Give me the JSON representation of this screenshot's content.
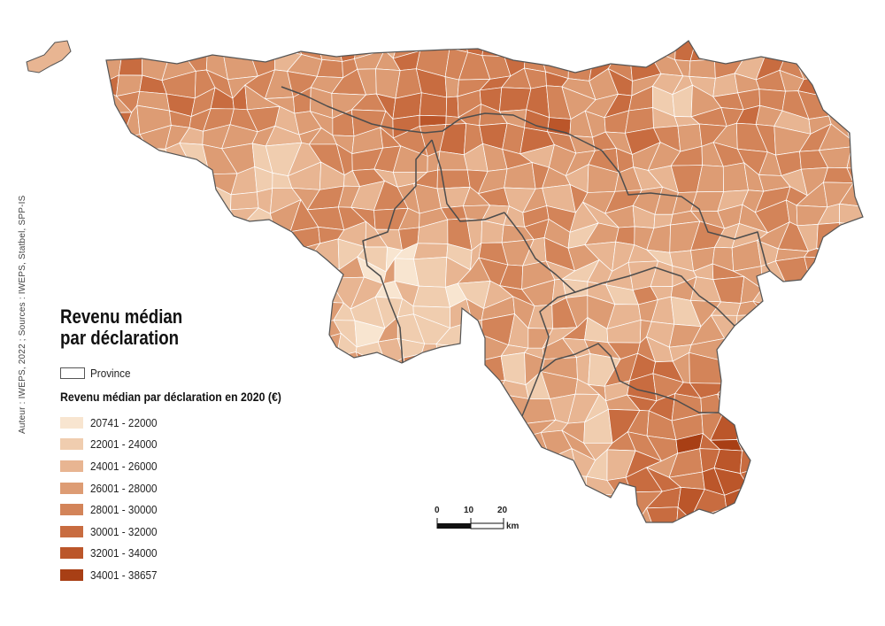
{
  "credit": "Auteur : IWEPS, 2022 ; Sources : IWEPS, Statbel, SPP-IS",
  "title": {
    "line1": "Revenu médian",
    "line2": "par déclaration"
  },
  "legend": {
    "province_label": "Province",
    "title": "Revenu médian par déclaration en 2020 (€)",
    "classes": [
      {
        "label": "20741 - 22000",
        "color": "#f8e5d0"
      },
      {
        "label": "22001 - 24000",
        "color": "#f0cdaf"
      },
      {
        "label": "24001 - 26000",
        "color": "#e8b592"
      },
      {
        "label": "26001 - 28000",
        "color": "#dd9c74"
      },
      {
        "label": "28001 - 30000",
        "color": "#d38459"
      },
      {
        "label": "30001 - 32000",
        "color": "#c86c40"
      },
      {
        "label": "32001 - 34000",
        "color": "#bb562a"
      },
      {
        "label": "34001 - 38657",
        "color": "#a83f15"
      }
    ]
  },
  "scalebar": {
    "ticks": [
      "0",
      "10",
      "20"
    ],
    "unit": "km"
  }
}
